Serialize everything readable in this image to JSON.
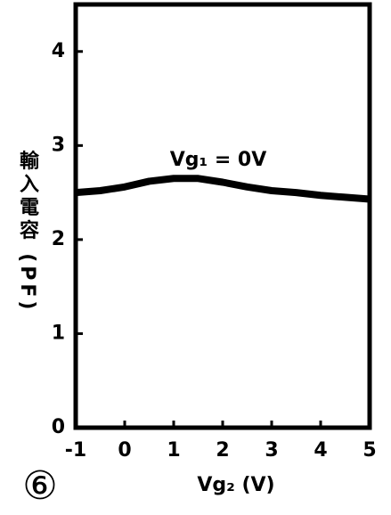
{
  "chart_data": {
    "type": "line",
    "x_label": "Vg₂ (V)",
    "y_label": "輸入電容 (PF)",
    "annotation": "Vg₁ = 0V",
    "figure_label": "⑥",
    "x": [
      -1,
      -0.5,
      0,
      0.5,
      1,
      1.5,
      2,
      2.5,
      3,
      3.5,
      4,
      4.5,
      5
    ],
    "series": [
      {
        "color": "#000000",
        "values": [
          2.5,
          2.52,
          2.56,
          2.62,
          2.65,
          2.65,
          2.61,
          2.56,
          2.52,
          2.5,
          2.47,
          2.45,
          2.43
        ]
      }
    ],
    "xlim": [
      -1,
      5
    ],
    "ylim": [
      0,
      4.5
    ],
    "xticks": [
      -1,
      0,
      1,
      2,
      3,
      4,
      5
    ],
    "yticks": [
      0,
      1,
      2,
      3,
      4
    ]
  }
}
